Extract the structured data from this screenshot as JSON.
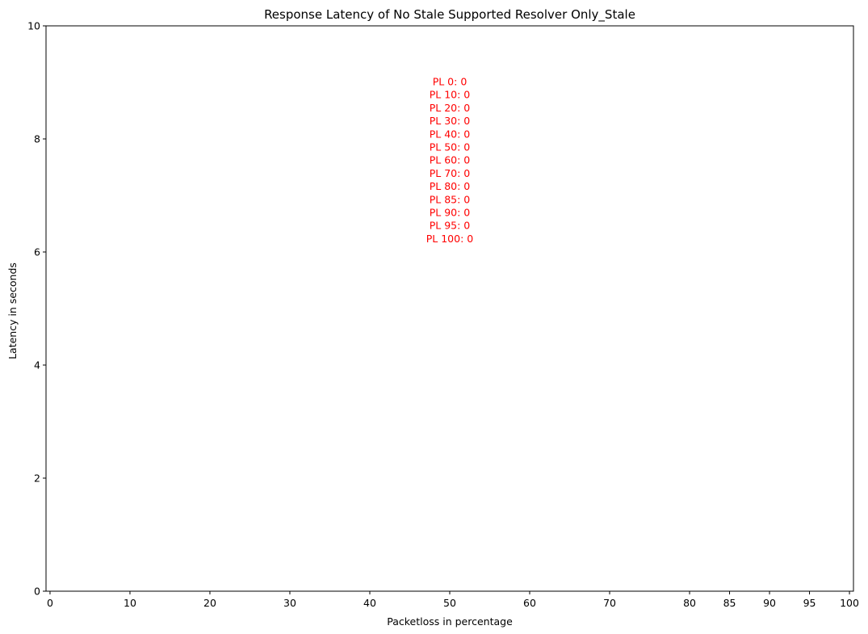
{
  "chart_data": {
    "type": "bar",
    "title": "Response Latency of No Stale Supported Resolver Only_Stale",
    "xlabel": "Packetloss in percentage",
    "ylabel": "Latency in seconds",
    "x_ticks": [
      "0",
      "10",
      "20",
      "30",
      "40",
      "50",
      "60",
      "70",
      "80",
      "85",
      "90",
      "95",
      "100"
    ],
    "x_values": [
      0,
      10,
      20,
      30,
      40,
      50,
      60,
      70,
      80,
      85,
      90,
      95,
      100
    ],
    "xlim": [
      -0.5,
      100.5
    ],
    "ylim": [
      0,
      10
    ],
    "y_ticks": [
      "0",
      "2",
      "4",
      "6",
      "8",
      "10"
    ],
    "y_tick_values": [
      0,
      2,
      4,
      6,
      8,
      10
    ],
    "values": [
      0,
      0,
      0,
      0,
      0,
      0,
      0,
      0,
      0,
      0,
      0,
      0,
      0
    ],
    "annotations": [
      "PL 0: 0",
      "PL 10: 0",
      "PL 20: 0",
      "PL 30: 0",
      "PL 40: 0",
      "PL 50: 0",
      "PL 60: 0",
      "PL 70: 0",
      "PL 80: 0",
      "PL 85: 0",
      "PL 90: 0",
      "PL 95: 0",
      "PL 100: 0"
    ],
    "annotation_color": "#ff0000",
    "grid": false
  }
}
